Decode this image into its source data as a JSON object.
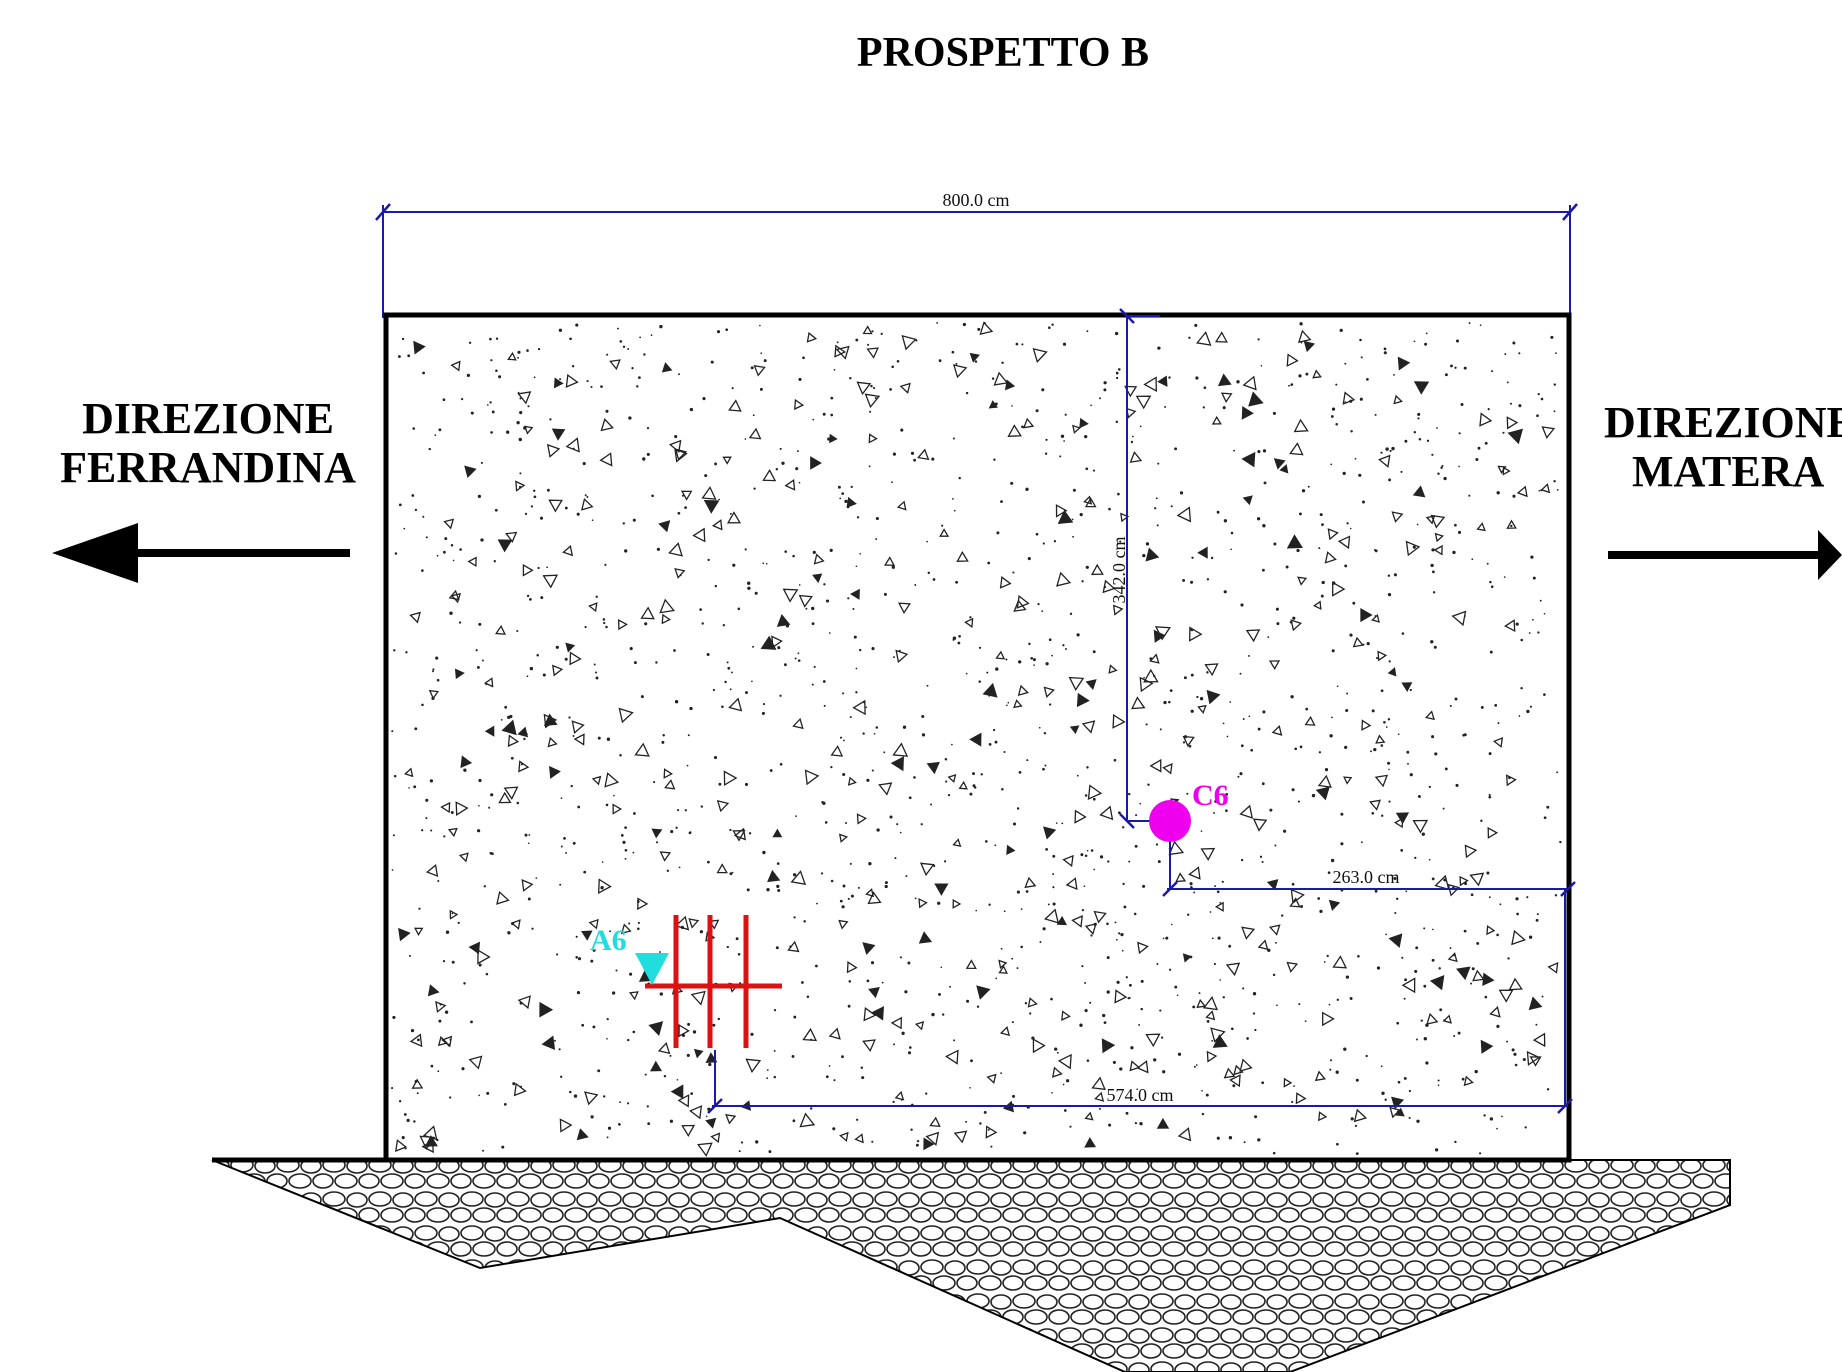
{
  "title": "PROSPETTO B",
  "left_direction": {
    "line1": "DIREZIONE",
    "line2": "FERRANDINA",
    "arrow_icon": "arrow-left-icon"
  },
  "right_direction": {
    "line1": "DIREZIONE",
    "line2": "MATERA",
    "arrow_icon": "arrow-right-icon"
  },
  "dimensions": {
    "width_total": "800.0 cm",
    "height_c6": "342.0 cm",
    "c6_offset": "263.0 cm",
    "a6_offset": "574.0 cm"
  },
  "markers": {
    "c6": {
      "label": "C6",
      "color": "#ee00ee"
    },
    "a6": {
      "label": "A6",
      "color": "#22dddd"
    }
  },
  "colors": {
    "dimension_line": "#1a1aa8",
    "anchor_lines": "#dd1111",
    "wall_outline": "#000000"
  }
}
